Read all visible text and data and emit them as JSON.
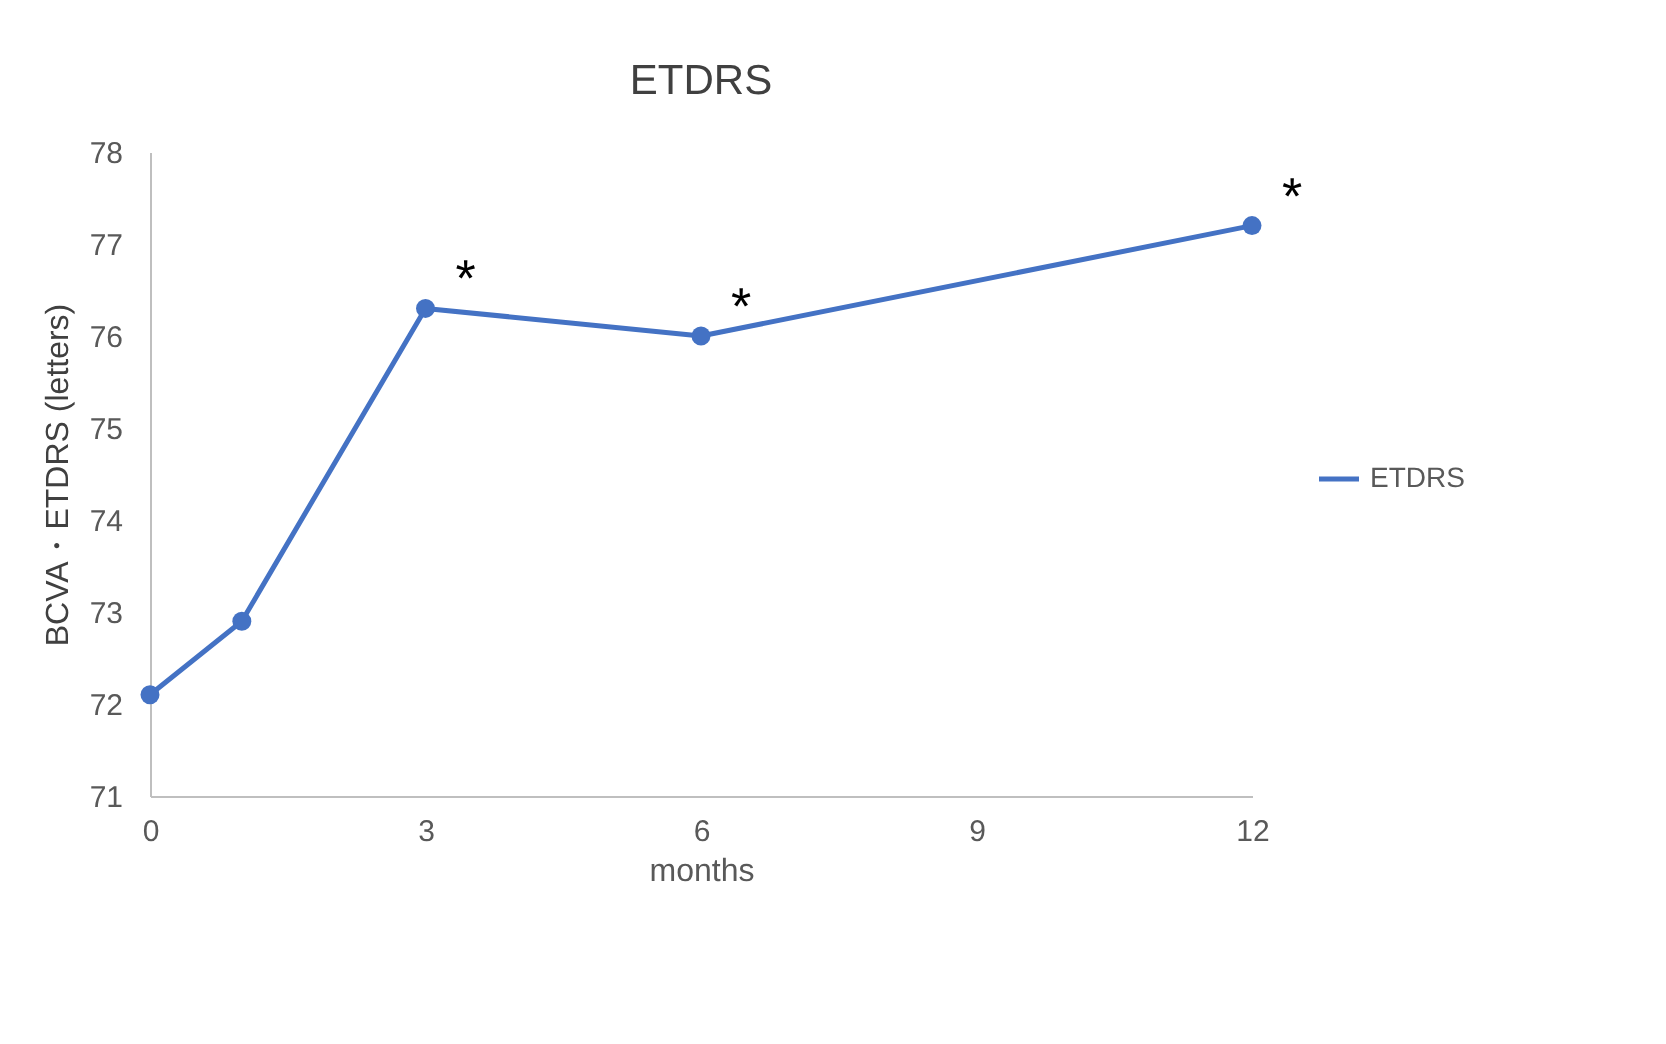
{
  "chart_data": {
    "type": "line",
    "title": "ETDRS",
    "xlabel": "months",
    "ylabel": "BCVA・ETDRS (letters)",
    "x": [
      0,
      1,
      3,
      6,
      12
    ],
    "series": [
      {
        "name": "ETDRS",
        "color": "#4472c4",
        "values": [
          72.1,
          72.9,
          76.3,
          76.0,
          77.2
        ]
      }
    ],
    "xlim": [
      0,
      12
    ],
    "xticks": [
      0,
      3,
      6,
      9,
      12
    ],
    "ylim": [
      71,
      78
    ],
    "yticks": [
      71,
      72,
      73,
      74,
      75,
      76,
      77,
      78
    ],
    "grid": false,
    "legend": "right",
    "marker": "circle",
    "line_style": "solid",
    "annotations": [
      {
        "text": "*",
        "x": 3,
        "y": 76.3
      },
      {
        "text": "*",
        "x": 6,
        "y": 76.0
      },
      {
        "text": "*",
        "x": 12,
        "y": 77.2
      }
    ]
  }
}
